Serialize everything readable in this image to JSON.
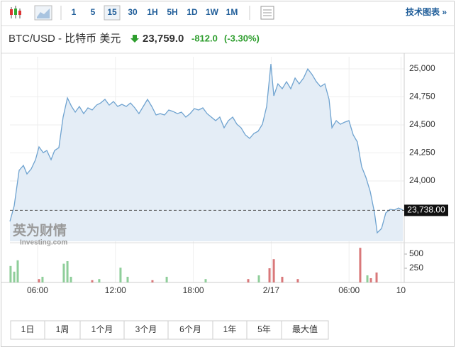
{
  "toolbar": {
    "intervals": [
      "1",
      "5",
      "15",
      "30",
      "1H",
      "5H",
      "1D",
      "1W",
      "1M"
    ],
    "technical": "技术图表 »"
  },
  "header": {
    "name": "BTC/USD - 比特币 美元",
    "price": "23,759.0",
    "change": "-812.0",
    "change_pct": "(-3.30%)"
  },
  "watermark": {
    "brand": "英为财情",
    "site": "Investing.com"
  },
  "ranges": [
    "1日",
    "1周",
    "1个月",
    "3个月",
    "6个月",
    "1年",
    "5年",
    "最大值"
  ],
  "chart_data": {
    "type": "area",
    "color": "#6fa3d0",
    "fill": "#e4edf6",
    "grid": true,
    "x": [
      3.87,
      4.2,
      4.58,
      4.91,
      5.18,
      5.51,
      5.84,
      6.11,
      6.44,
      6.71,
      7.04,
      7.31,
      7.64,
      7.97,
      8.3,
      8.62,
      8.9,
      9.22,
      9.55,
      9.88,
      10.21,
      10.54,
      10.86,
      11.19,
      11.52,
      11.85,
      12.17,
      12.5,
      12.83,
      13.16,
      13.49,
      13.81,
      14.14,
      14.47,
      14.8,
      15.13,
      15.45,
      15.78,
      16.11,
      16.44,
      16.77,
      17.09,
      17.42,
      17.75,
      18.08,
      18.4,
      18.73,
      19.06,
      19.39,
      19.72,
      20.04,
      20.37,
      20.7,
      21.03,
      21.36,
      21.68,
      22.01,
      22.34,
      22.67,
      22.99,
      23.32,
      23.65,
      23.98,
      24.2,
      24.52,
      24.85,
      25.18,
      25.51,
      25.84,
      26.16,
      26.49,
      26.82,
      27.15,
      27.48,
      27.8,
      28.13,
      28.46,
      28.68,
      29.01,
      29.33,
      29.66,
      29.99,
      30.32,
      30.64,
      30.97,
      31.3,
      31.63,
      31.96,
      32.17,
      32.5,
      32.83,
      33.16,
      33.49,
      33.81,
      34.14
    ],
    "values": [
      23639,
      23778,
      24095,
      24139,
      24063,
      24108,
      24190,
      24304,
      24253,
      24272,
      24190,
      24272,
      24297,
      24570,
      24741,
      24665,
      24614,
      24665,
      24601,
      24652,
      24633,
      24677,
      24696,
      24728,
      24677,
      24709,
      24665,
      24684,
      24665,
      24696,
      24652,
      24601,
      24665,
      24728,
      24665,
      24589,
      24601,
      24589,
      24633,
      24620,
      24601,
      24614,
      24570,
      24601,
      24646,
      24633,
      24652,
      24601,
      24570,
      24538,
      24570,
      24475,
      24538,
      24570,
      24506,
      24475,
      24411,
      24380,
      24424,
      24443,
      24506,
      24665,
      25044,
      24759,
      24867,
      24823,
      24886,
      24823,
      24918,
      24867,
      24918,
      25000,
      24949,
      24886,
      24842,
      24867,
      24728,
      24475,
      24538,
      24506,
      24525,
      24538,
      24411,
      24348,
      24127,
      24032,
      23905,
      23715,
      23538,
      23576,
      23715,
      23747,
      23741,
      23759,
      23741
    ],
    "xlim": [
      3.87,
      34.25
    ],
    "ylim": [
      23462,
      25108
    ],
    "xticks": [
      {
        "value": 6,
        "label": "06:00"
      },
      {
        "value": 12,
        "label": "12:00"
      },
      {
        "value": 18,
        "label": "18:00"
      },
      {
        "value": 24,
        "label": "2/17"
      },
      {
        "value": 30,
        "label": "06:00"
      },
      {
        "value": 34,
        "label": "10"
      }
    ],
    "yticks": [
      {
        "value": 24000,
        "label": "24,000"
      },
      {
        "value": 24250,
        "label": "24,250"
      },
      {
        "value": 24500,
        "label": "24,500"
      },
      {
        "value": 24750,
        "label": "24,750"
      },
      {
        "value": 25000,
        "label": "25,000"
      }
    ],
    "last_price": {
      "value": 23738,
      "label": "23,738.00"
    },
    "volume": {
      "ylim": [
        0,
        650
      ],
      "yticks": [
        250,
        500
      ],
      "x": [
        3.92,
        4.2,
        4.47,
        6.11,
        6.38,
        8.02,
        8.3,
        8.57,
        10.21,
        10.75,
        12.39,
        12.94,
        14.85,
        15.95,
        18.95,
        22.23,
        23.05,
        23.87,
        24.2,
        24.85,
        26.05,
        30.86,
        31.41,
        31.68,
        32.12
      ],
      "values": [
        290,
        190,
        390,
        60,
        100,
        330,
        375,
        100,
        40,
        60,
        260,
        100,
        40,
        100,
        60,
        60,
        125,
        250,
        410,
        100,
        60,
        610,
        125,
        75,
        175
      ],
      "colors": [
        "#8fce9a",
        "#8fce9a",
        "#8fce9a",
        "#d9787a",
        "#8fce9a",
        "#8fce9a",
        "#8fce9a",
        "#8fce9a",
        "#d9787a",
        "#8fce9a",
        "#8fce9a",
        "#8fce9a",
        "#d9787a",
        "#8fce9a",
        "#8fce9a",
        "#d9787a",
        "#8fce9a",
        "#d9787a",
        "#d9787a",
        "#d9787a",
        "#d9787a",
        "#d9787a",
        "#8fce9a",
        "#d9787a",
        "#d9787a"
      ]
    }
  }
}
